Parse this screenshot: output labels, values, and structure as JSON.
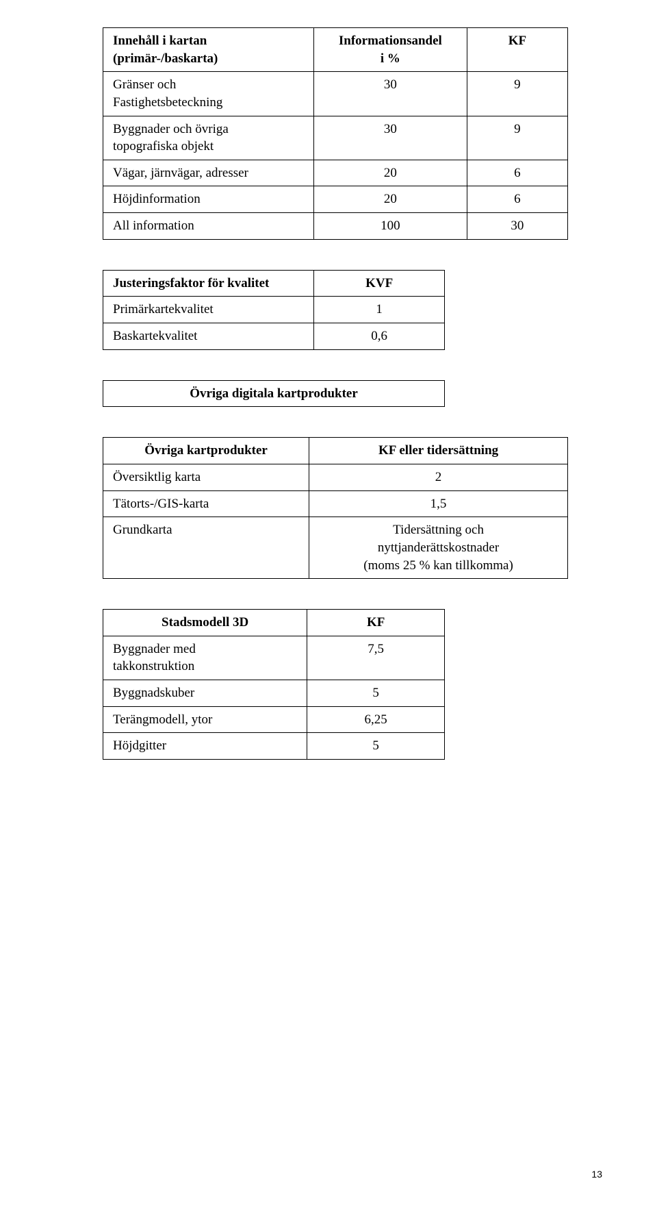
{
  "table1": {
    "headers": [
      "Innehåll i kartan\n(primär-/baskarta)",
      "Informationsandel\ni %",
      "KF"
    ],
    "rows": [
      [
        "Gränser och\nFastighetsbeteckning",
        "30",
        "9"
      ],
      [
        "Byggnader och övriga\ntopografiska objekt",
        "30",
        "9"
      ],
      [
        "Vägar, järnvägar, adresser",
        "20",
        "6"
      ],
      [
        "Höjdinformation",
        "20",
        "6"
      ],
      [
        "All information",
        "100",
        "30"
      ]
    ]
  },
  "table2": {
    "header": [
      "Justeringsfaktor för kvalitet",
      "KVF"
    ],
    "rows": [
      [
        "Primärkartekvalitet",
        "1"
      ],
      [
        "Baskartekvalitet",
        "0,6"
      ]
    ]
  },
  "table3": {
    "title": "Övriga digitala kartprodukter"
  },
  "table4": {
    "header": [
      "Övriga kartprodukter",
      "KF eller tidersättning"
    ],
    "rows": [
      [
        "Översiktlig karta",
        "2"
      ],
      [
        "Tätorts-/GIS-karta",
        "1,5"
      ],
      [
        "Grundkarta",
        "Tidersättning och\nnyttjanderättskostnader\n(moms 25 % kan tillkomma)"
      ]
    ]
  },
  "table5": {
    "header": [
      "Stadsmodell 3D",
      "KF"
    ],
    "rows": [
      [
        "Byggnader med\ntakkonstruktion",
        "7,5"
      ],
      [
        "Byggnadskuber",
        "5"
      ],
      [
        "Terängmodell, ytor",
        "6,25"
      ],
      [
        "Höjdgitter",
        "5"
      ]
    ]
  },
  "page_number": "13"
}
